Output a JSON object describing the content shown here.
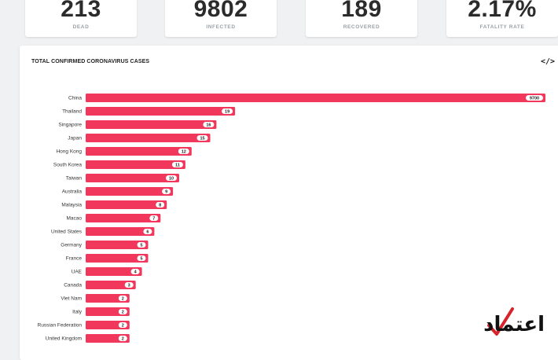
{
  "stats": [
    {
      "value": "213",
      "label": "DEAD"
    },
    {
      "value": "9802",
      "label": "INFECTED"
    },
    {
      "value": "189",
      "label": "RECOVERED"
    },
    {
      "value": "2.17%",
      "label": "FATALITY RATE"
    }
  ],
  "chart": {
    "embed_icon": "</>",
    "bar_color": "#f2375c"
  },
  "chart_data": {
    "type": "bar",
    "orientation": "horizontal",
    "title": "TOTAL CONFIRMED CORONAVIRUS CASES",
    "categories": [
      "China",
      "Thailand",
      "Singapore",
      "Japan",
      "Hong Kong",
      "South Korea",
      "Taiwan",
      "Australia",
      "Malaysia",
      "Macao",
      "United States",
      "Germany",
      "France",
      "UAE",
      "Canada",
      "Viet Nam",
      "Italy",
      "Russian Federation",
      "United Kingdom"
    ],
    "values": [
      9700,
      19,
      16,
      15,
      12,
      11,
      10,
      9,
      8,
      7,
      6,
      5,
      5,
      4,
      3,
      2,
      2,
      2,
      2
    ],
    "data_labels": [
      "9700",
      "19",
      "16",
      "15",
      "12",
      "11",
      "10",
      "9",
      "8",
      "7",
      "6",
      "5",
      "5",
      "4",
      "3",
      "2",
      "2",
      "2",
      "2"
    ]
  },
  "watermark": {
    "text": "اعتماد",
    "icon": "checkmark-icon"
  }
}
